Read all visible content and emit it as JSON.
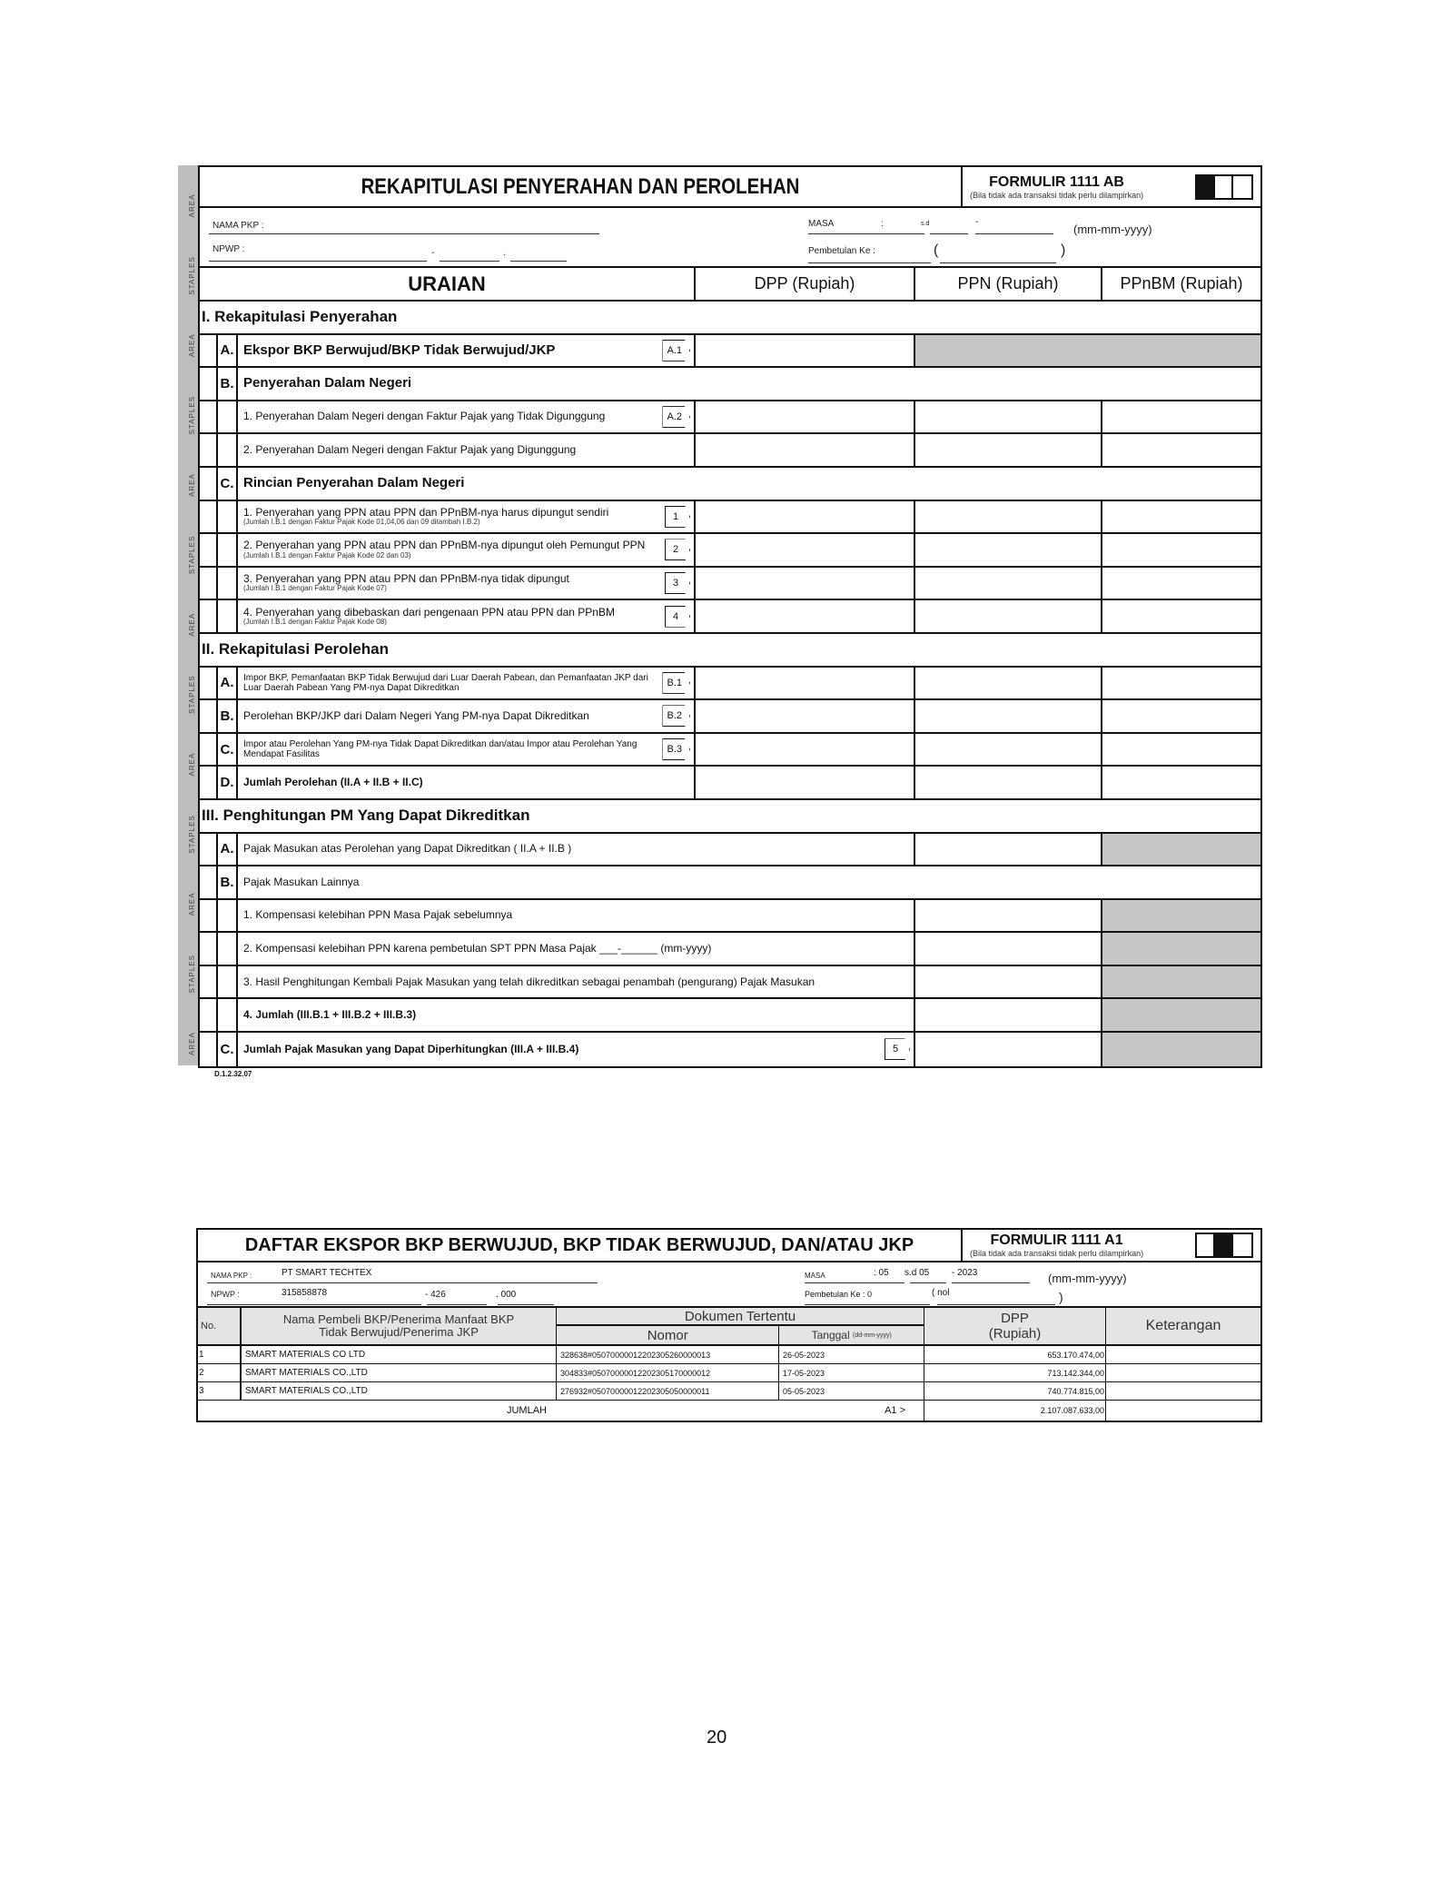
{
  "staple_text": "AREA STAPLES AREA STAPLES AREA STAPLES AREA STAPLES AREA STAPLES AREA STAPLES AREA STAPLES AREA STAPLES AREA STAPLES AREA STAPLES AREA STAPLES AREA STAPLES",
  "form1": {
    "title": "REKAPITULASI PENYERAHAN DAN PEROLEHAN",
    "form_no": "FORMULIR 1111 AB",
    "form_note": "(Bila tidak ada transaksi tidak perlu dilampirkan)",
    "nama_label": "NAMA PKP  :",
    "npwp_label": "NPWP      :",
    "masa_label": "MASA",
    "colon": ":",
    "sd": "s.d",
    "dash": "-",
    "dot": ".",
    "date_format": "(mm-mm-yyyy)",
    "pembetulan_label": "Pembetulan Ke  :",
    "paren_open": "(",
    "paren_close": ")",
    "columns": [
      "URAIAN",
      "DPP (Rupiah)",
      "PPN (Rupiah)",
      "PPnBM (Rupiah)"
    ],
    "rows": [
      {
        "kind": "section",
        "text": "I. Rekapitulasi Penyerahan"
      },
      {
        "kind": "item",
        "letter": "A.",
        "text": "Ekspor BKP Berwujud/BKP Tidak Berwujud/JKP",
        "bold": true,
        "code": "A.1",
        "shaded": [
          "ppn",
          "ppnbm"
        ]
      },
      {
        "kind": "group",
        "letter": "B.",
        "text": "Penyerahan Dalam Negeri"
      },
      {
        "kind": "item",
        "letter": "",
        "text": "1. Penyerahan Dalam Negeri dengan Faktur Pajak yang Tidak Digunggung",
        "code": "A.2"
      },
      {
        "kind": "item",
        "letter": "",
        "text": "2. Penyerahan Dalam Negeri dengan Faktur Pajak yang Digunggung"
      },
      {
        "kind": "group",
        "letter": "C.",
        "text": "Rincian Penyerahan Dalam Negeri"
      },
      {
        "kind": "item",
        "letter": "",
        "text": "1. Penyerahan yang PPN atau PPN dan PPnBM-nya harus dipungut sendiri",
        "sub": "(Jumlah I.B.1 dengan Faktur Pajak Kode 01,04,06 dan 09 ditambah I.B.2)",
        "code": "1"
      },
      {
        "kind": "item",
        "letter": "",
        "text": "2. Penyerahan yang PPN atau PPN dan PPnBM-nya dipungut oleh Pemungut PPN",
        "sub": "(Jumlah I.B.1 dengan Faktur Pajak Kode 02 dan 03)",
        "code": "2"
      },
      {
        "kind": "item",
        "letter": "",
        "text": "3. Penyerahan yang PPN atau PPN dan PPnBM-nya tidak dipungut",
        "sub": "(Jumlah I.B.1 dengan Faktur Pajak Kode 07)",
        "code": "3"
      },
      {
        "kind": "item",
        "letter": "",
        "text": "4. Penyerahan yang dibebaskan dari pengenaan PPN atau PPN dan PPnBM",
        "sub": "(Jumlah I.B.1 dengan Faktur Pajak Kode 08)",
        "code": "4"
      },
      {
        "kind": "section",
        "text": "II. Rekapitulasi Perolehan"
      },
      {
        "kind": "item",
        "letter": "A.",
        "text": "Impor BKP, Pemanfaatan BKP Tidak Berwujud dari Luar Daerah Pabean, dan Pemanfaatan JKP dari Luar Daerah Pabean Yang PM-nya Dapat Dikreditkan",
        "small": true,
        "code": "B.1"
      },
      {
        "kind": "item",
        "letter": "B.",
        "text": "Perolehan BKP/JKP dari Dalam Negeri Yang PM-nya Dapat Dikreditkan",
        "code": "B.2"
      },
      {
        "kind": "item",
        "letter": "C.",
        "text": "Impor atau Perolehan Yang PM-nya Tidak Dapat Dikreditkan dan/atau Impor atau Perolehan Yang Mendapat Fasilitas",
        "small": true,
        "code": "B.3"
      },
      {
        "kind": "item",
        "letter": "D.",
        "text": "Jumlah Perolehan (II.A + II.B + II.C)",
        "semibold": true
      },
      {
        "kind": "section",
        "text": "III. Penghitungan PM Yang Dapat Dikreditkan"
      },
      {
        "kind": "wide",
        "letter": "A.",
        "text": "Pajak Masukan atas Perolehan yang Dapat Dikreditkan ( II.A + II.B )",
        "shaded": [
          "ppnbm"
        ]
      },
      {
        "kind": "group",
        "letter": "B.",
        "text": "Pajak Masukan Lainnya",
        "light": true
      },
      {
        "kind": "wide",
        "letter": "",
        "text": "1. Kompensasi kelebihan PPN Masa Pajak sebelumnya",
        "shaded": [
          "ppnbm"
        ]
      },
      {
        "kind": "wide",
        "letter": "",
        "text": "2. Kompensasi kelebihan PPN karena pembetulan SPT PPN Masa Pajak ___-______ (mm-yyyy)",
        "shaded": [
          "ppnbm"
        ]
      },
      {
        "kind": "wide",
        "letter": "",
        "text": "3. Hasil Penghitungan Kembali Pajak Masukan yang telah dikreditkan sebagai penambah (pengurang) Pajak Masukan",
        "shaded": [
          "ppnbm"
        ]
      },
      {
        "kind": "wide",
        "letter": "",
        "text": "4. Jumlah (III.B.1 + III.B.2 + III.B.3)",
        "semibold": true,
        "shaded": [
          "ppnbm"
        ]
      },
      {
        "kind": "wide",
        "letter": "C.",
        "text": "Jumlah Pajak Masukan yang Dapat Diperhitungkan (III.A + III.B.4)",
        "semibold": true,
        "code": "5",
        "shaded": [
          "ppnbm"
        ]
      }
    ],
    "footer_code": "D.1.2.32.07"
  },
  "form2": {
    "title": "DAFTAR EKSPOR BKP BERWUJUD, BKP TIDAK BERWUJUD, DAN/ATAU JKP",
    "form_no": "FORMULIR 1111 A1",
    "form_note": "(Bila tidak ada transaksi tidak perlu dilampirkan)",
    "nama_label": "NAMA PKP  :",
    "nama_value": "PT SMART TECHTEX",
    "npwp_label": "NPWP   :",
    "npwp_1": "315858878",
    "npwp_2": "- 426",
    "npwp_3": ". 000",
    "masa_label": "MASA",
    "masa_from": ": 05",
    "sd": "s.d 05",
    "year": "-  2023",
    "date_format": "(mm-mm-yyyy)",
    "pembetulan_label": "Pembetulan Ke  :  0",
    "pembetulan_text": "(  nol",
    "paren_close": ")",
    "headers": {
      "no": "No.",
      "nama": "Nama Pembeli BKP/Penerima Manfaat BKP Tidak Berwujud/Penerima  JKP",
      "dokumen": "Dokumen Tertentu",
      "nomor": "Nomor",
      "tanggal": "Tanggal",
      "tanggal_fmt": "(dd-mm-yyyy)",
      "dpp": "DPP (Rupiah)",
      "keterangan": "Keterangan"
    },
    "rows": [
      {
        "no": "1",
        "nama": "SMART MATERIALS CO LTD",
        "nomor": "328638#05070000012202305260000013",
        "tanggal": "26-05-2023",
        "dpp": "653.170.474,00",
        "ket": ""
      },
      {
        "no": "2",
        "nama": "SMART MATERIALS CO.,LTD",
        "nomor": "304833#05070000012202305170000012",
        "tanggal": "17-05-2023",
        "dpp": "713.142.344,00",
        "ket": ""
      },
      {
        "no": "3",
        "nama": "SMART MATERIALS CO.,LTD",
        "nomor": "276932#05070000012202305050000011",
        "tanggal": "05-05-2023",
        "dpp": "740.774.815,00",
        "ket": ""
      }
    ],
    "jumlah_label": "JUMLAH",
    "jumlah_code": "A1 >",
    "jumlah_dpp": "2.107.087.633,00"
  },
  "page_number": "20"
}
